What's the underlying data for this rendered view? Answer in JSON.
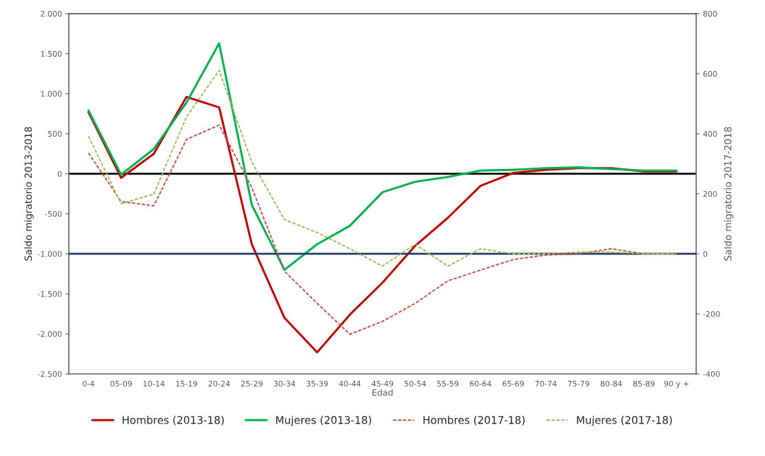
{
  "chart_data": {
    "type": "line",
    "xlabel": "Edad",
    "ylabel": "Saldo migratorio 2013-2018",
    "y2label": "Saldo migratorio 2017-2018",
    "categories": [
      "0-4",
      "05-09",
      "10-14",
      "15-19",
      "20-24",
      "25-29",
      "30-34",
      "35-39",
      "40-44",
      "45-49",
      "50-54",
      "55-59",
      "60-64",
      "65-69",
      "70-74",
      "75-79",
      "80-84",
      "85-89",
      "90 y +"
    ],
    "series": [
      {
        "name": "Hombres (2013-18)",
        "color": "#c00000",
        "line_style": "solid",
        "values": [
          770,
          -50,
          250,
          960,
          830,
          -880,
          -1800,
          -2230,
          -1760,
          -1360,
          -900,
          -550,
          -150,
          10,
          50,
          70,
          70,
          30,
          30
        ]
      },
      {
        "name": "Mujeres (2013-18)",
        "color": "#00b050",
        "line_style": "solid",
        "values": [
          790,
          -10,
          310,
          890,
          1630,
          -390,
          -1200,
          -880,
          -650,
          -230,
          -100,
          -40,
          40,
          50,
          70,
          80,
          60,
          40,
          40
        ]
      },
      {
        "name": "Hombres (2017-18)",
        "color": "#c0504d",
        "line_style": "dashed",
        "axis": "y2",
        "values": [
          336,
          174,
          160,
          381,
          429,
          221,
          -58,
          -165,
          -268,
          -225,
          -165,
          -90,
          -54,
          -19,
          -4,
          0,
          17,
          0,
          0
        ]
      },
      {
        "name": "Mujeres (2017-18)",
        "color": "#9bbb59",
        "line_style": "dashed",
        "axis": "y2",
        "values": [
          392,
          167,
          199,
          456,
          611,
          306,
          114,
          71,
          17,
          -41,
          32,
          -41,
          17,
          0,
          0,
          6,
          6,
          0,
          0
        ]
      }
    ],
    "ylim": [
      -2500,
      2000
    ],
    "yticks": [
      {
        "value": -2500,
        "label": "-2.500"
      },
      {
        "value": -2000,
        "label": "-2.000"
      },
      {
        "value": -1500,
        "label": "-1.500"
      },
      {
        "value": -1000,
        "label": "-1.000"
      },
      {
        "value": -500,
        "label": "-500"
      },
      {
        "value": 0,
        "label": "0"
      },
      {
        "value": 500,
        "label": "500"
      },
      {
        "value": 1000,
        "label": "1.000"
      },
      {
        "value": 1500,
        "label": "1.500"
      },
      {
        "value": 2000,
        "label": "2.000"
      }
    ],
    "y2lim": [
      -400,
      800
    ],
    "y2ticks": [
      -400,
      -200,
      0,
      200,
      400,
      600,
      800
    ],
    "ref_lines": [
      {
        "axis": "y",
        "value": 0,
        "color": "#000000"
      },
      {
        "axis": "y2",
        "value": 0,
        "color": "#1f3864"
      }
    ],
    "grid": false,
    "legend": "bottom"
  }
}
